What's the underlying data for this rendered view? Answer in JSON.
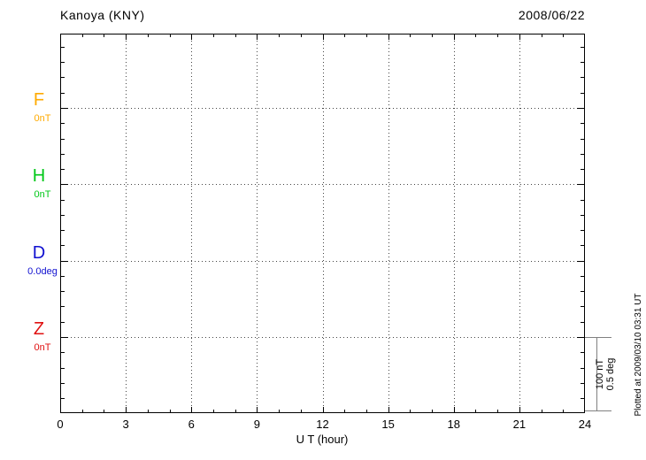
{
  "header": {
    "station": "Kanoya (KNY)",
    "date": "2008/06/22"
  },
  "x_axis": {
    "title": "U T (hour)"
  },
  "scale_bar": {
    "line1": "100 nT",
    "line2": "0.5 deg"
  },
  "footer": {
    "plotted_at": "Plotted at 2009/03/10 03:31 UT"
  },
  "chart_data": {
    "type": "line",
    "title": "Kanoya (KNY)",
    "date": "2008/06/22",
    "xlabel": "U T (hour)",
    "x_range": [
      0,
      24
    ],
    "x_ticks": [
      0,
      3,
      6,
      9,
      12,
      15,
      18,
      21,
      24
    ],
    "x_minor_tick_step_hours": 1,
    "grid": "dotted vertical lines every 3 hours; dotted horizontal baseline per component",
    "legend_position": "left margin",
    "series": [
      {
        "name": "F",
        "baseline_label": "0nT",
        "unit": "nT",
        "color": "#ffaa00",
        "values": []
      },
      {
        "name": "H",
        "baseline_label": "0nT",
        "unit": "nT",
        "color": "#00c818",
        "values": []
      },
      {
        "name": "D",
        "baseline_label": "0.0deg",
        "unit": "deg",
        "color": "#1010d0",
        "values": []
      },
      {
        "name": "Z",
        "baseline_label": "0nT",
        "unit": "nT",
        "color": "#e01010",
        "values": []
      }
    ],
    "y_scale_per_division": {
      "nT": 100,
      "deg": 0.5,
      "minor_ticks_per_division": 5
    },
    "plotted_at": "Plotted at 2009/03/10 03:31 UT"
  }
}
